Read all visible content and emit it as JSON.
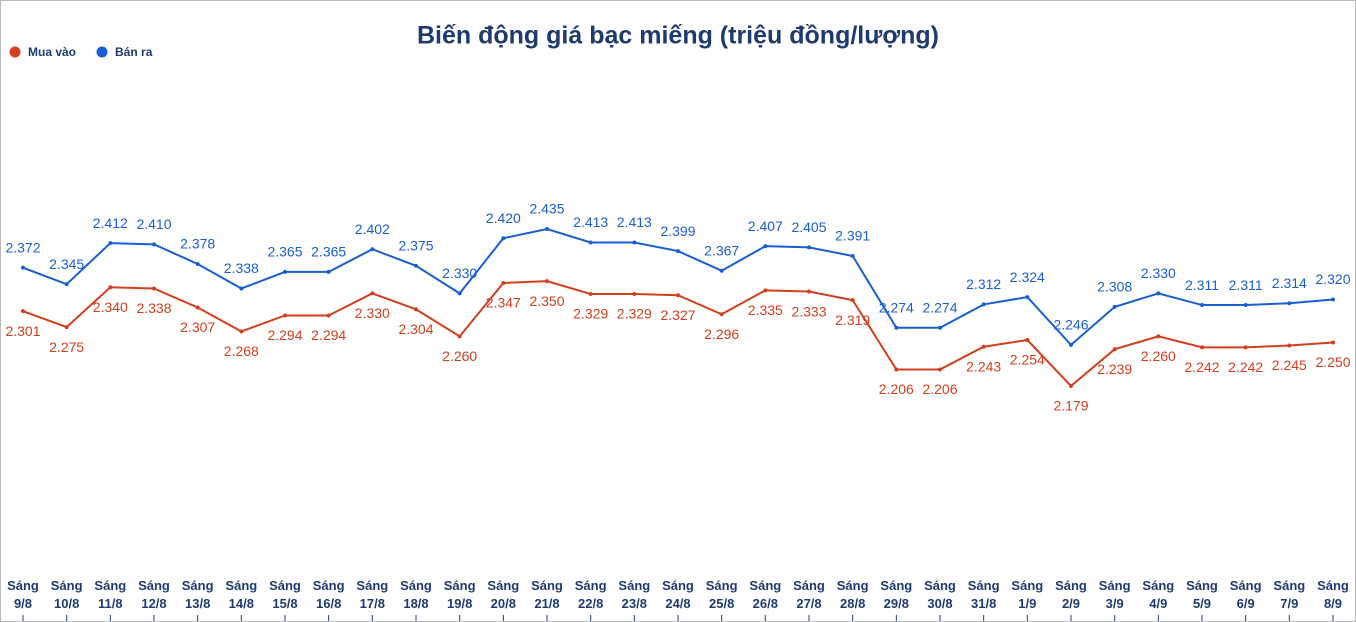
{
  "chart_data": {
    "type": "line",
    "title": "Biến động giá bạc miếng (triệu đồng/lượng)",
    "categories": [
      "Sáng 9/8",
      "Sáng 10/8",
      "Sáng 11/8",
      "Sáng 12/8",
      "Sáng 13/8",
      "Sáng 14/8",
      "Sáng 15/8",
      "Sáng 16/8",
      "Sáng 17/8",
      "Sáng 18/8",
      "Sáng 19/8",
      "Sáng 20/8",
      "Sáng 21/8",
      "Sáng 22/8",
      "Sáng 23/8",
      "Sáng 24/8",
      "Sáng 25/8",
      "Sáng 26/8",
      "Sáng 27/8",
      "Sáng 28/8",
      "Sáng 29/8",
      "Sáng 30/8",
      "Sáng 31/8",
      "Sáng 1/9",
      "Sáng 2/9",
      "Sáng 3/9",
      "Sáng 4/9",
      "Sáng 5/9",
      "Sáng 6/9",
      "Sáng 7/9",
      "Sáng 8/9"
    ],
    "series": [
      {
        "name": "Mua vào",
        "color": "#d0401e",
        "values": [
          2.301,
          2.275,
          2.34,
          2.338,
          2.307,
          2.268,
          2.294,
          2.294,
          2.33,
          2.304,
          2.26,
          2.347,
          2.35,
          2.329,
          2.329,
          2.327,
          2.296,
          2.335,
          2.333,
          2.319,
          2.206,
          2.206,
          2.243,
          2.254,
          2.179,
          2.239,
          2.26,
          2.242,
          2.242,
          2.245,
          2.25
        ],
        "value_labels": [
          "2.301",
          "2.275",
          "2.340",
          "2.338",
          "2.307",
          "2.268",
          "2.294",
          "2.294",
          "2.330",
          "2.304",
          "2.260",
          "2.347",
          "2.350",
          "2.329",
          "2.329",
          "2.327",
          "2.296",
          "2.335",
          "2.333",
          "2.319",
          "2.206",
          "2.206",
          "2.243",
          "2.254",
          "2.179",
          "2.239",
          "2.260",
          "2.242",
          "2.242",
          "2.245",
          "2.250"
        ]
      },
      {
        "name": "Bán ra",
        "color": "#1a5fd0",
        "values": [
          2.372,
          2.345,
          2.412,
          2.41,
          2.378,
          2.338,
          2.365,
          2.365,
          2.402,
          2.375,
          2.33,
          2.42,
          2.435,
          2.413,
          2.413,
          2.399,
          2.367,
          2.407,
          2.405,
          2.391,
          2.274,
          2.274,
          2.312,
          2.324,
          2.246,
          2.308,
          2.33,
          2.311,
          2.311,
          2.314,
          2.32
        ],
        "value_labels": [
          "2.372",
          "2.345",
          "2.412",
          "2.410",
          "2.378",
          "2.338",
          "2.365",
          "2.365",
          "2.402",
          "2.375",
          "2.330",
          "2.420",
          "2.435",
          "2.413",
          "2.413",
          "2.399",
          "2.367",
          "2.407",
          "2.405",
          "2.391",
          "2.274",
          "2.274",
          "2.312",
          "2.324",
          "2.246",
          "2.308",
          "2.330",
          "2.311",
          "2.311",
          "2.314",
          "2.320"
        ]
      }
    ]
  }
}
